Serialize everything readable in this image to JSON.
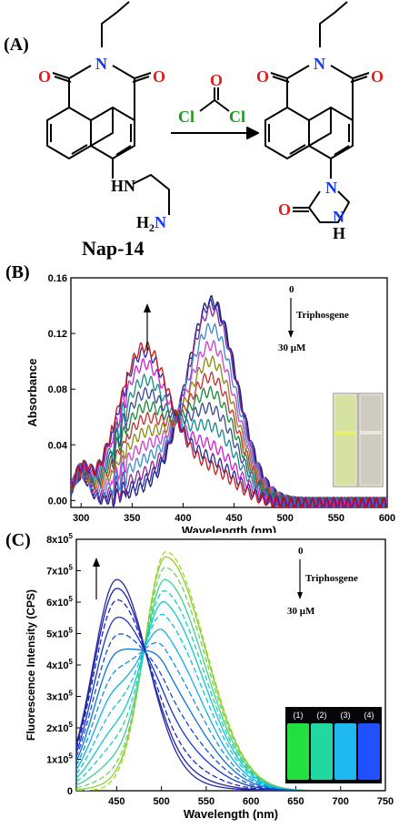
{
  "panels": {
    "a": {
      "label": "(A)",
      "reagent": {
        "o": "O",
        "cl_left": "Cl",
        "cl_right": "Cl"
      },
      "reactant": {
        "n": "N",
        "o_left": "O",
        "o_right": "O",
        "hn": "HN",
        "h2n": "H",
        "h2n_sub": "2",
        "h2n_n": "N",
        "name": "Nap-14"
      },
      "product": {
        "n": "N",
        "o_left": "O",
        "o_right": "O",
        "n_ring": "N",
        "o_ring": "O",
        "n_h": "N",
        "h": "H"
      }
    },
    "b": {
      "label": "(B)"
    },
    "c": {
      "label": "(C)"
    }
  },
  "chart_data": [
    {
      "type": "line",
      "panel": "(B)",
      "xlabel": "Wavelength (nm)",
      "ylabel": "Absorbance",
      "xlim": [
        290,
        600
      ],
      "ylim": [
        -0.005,
        0.16
      ],
      "x_ticks": [
        300,
        350,
        400,
        450,
        500,
        550,
        600
      ],
      "y_ticks": [
        0.0,
        0.04,
        0.08,
        0.12,
        0.16
      ],
      "y_tick_labels": [
        "0.00",
        "0.04",
        "0.08",
        "0.12",
        "0.16"
      ],
      "annotations": {
        "start": "0",
        "reagent": "Triphosgene",
        "end": "30 μM"
      },
      "isosbestic_point": {
        "x": 390,
        "y": 0.062
      },
      "series_model": "sum of two gaussian bands (362 nm, 428 nm) plus background",
      "series": [
        {
          "band1": 0.008,
          "band2": 0.145,
          "color": "#1a1a5e"
        },
        {
          "band1": 0.012,
          "band2": 0.143,
          "color": "#2b2bb0"
        },
        {
          "band1": 0.018,
          "band2": 0.138,
          "color": "#8a2a8a"
        },
        {
          "band1": 0.028,
          "band2": 0.125,
          "color": "#3a8ad0"
        },
        {
          "band1": 0.038,
          "band2": 0.112,
          "color": "#d040d0"
        },
        {
          "band1": 0.048,
          "band2": 0.1,
          "color": "#8a8a1a"
        },
        {
          "band1": 0.058,
          "band2": 0.088,
          "color": "#c03030"
        },
        {
          "band1": 0.067,
          "band2": 0.077,
          "color": "#1a8a3a"
        },
        {
          "band1": 0.077,
          "band2": 0.065,
          "color": "#3a4a8a"
        },
        {
          "band1": 0.087,
          "band2": 0.052,
          "color": "#1a8a8a"
        },
        {
          "band1": 0.099,
          "band2": 0.038,
          "color": "#d020d0"
        },
        {
          "band1": 0.108,
          "band2": 0.028,
          "color": "#2a2a9a"
        },
        {
          "band1": 0.112,
          "band2": 0.022,
          "color": "#c01a1a"
        }
      ],
      "inset": {
        "type": "photo",
        "cuvettes": 2
      }
    },
    {
      "type": "line",
      "panel": "(C)",
      "xlabel": "Wavelength (nm)",
      "ylabel": "Fluorescence Intensity (CPS)",
      "xlim": [
        405,
        750
      ],
      "ylim": [
        0,
        800000
      ],
      "x_ticks": [
        450,
        500,
        550,
        600,
        650,
        700,
        750
      ],
      "y_ticks": [
        0,
        100000,
        200000,
        300000,
        400000,
        500000,
        600000,
        700000,
        800000
      ],
      "y_tick_mantissa": [
        "0",
        "1x10",
        "2x10",
        "3x10",
        "4x10",
        "5x10",
        "6x10",
        "7x10",
        "8x10"
      ],
      "y_tick_exponent": "5",
      "annotations": {
        "start": "0",
        "reagent": "Triphosgene",
        "end": "30 μM"
      },
      "isosbestic_point": {
        "x": 482,
        "y": 460000
      },
      "series_model": "sum of two emission bands (450 nm, 505 nm)",
      "series": [
        {
          "band1": 0,
          "band2": 760000,
          "color": "#a8d820",
          "dashed": true
        },
        {
          "band1": 15000,
          "band2": 740000,
          "color": "#8ed030",
          "dashed": false
        },
        {
          "band1": 40000,
          "band2": 700000,
          "color": "#70d060",
          "dashed": true
        },
        {
          "band1": 80000,
          "band2": 650000,
          "color": "#40d090",
          "dashed": false
        },
        {
          "band1": 130000,
          "band2": 600000,
          "color": "#20d0b0",
          "dashed": true
        },
        {
          "band1": 180000,
          "band2": 550000,
          "color": "#10c8c8",
          "dashed": false
        },
        {
          "band1": 240000,
          "band2": 490000,
          "color": "#10c0e0",
          "dashed": true
        },
        {
          "band1": 300000,
          "band2": 420000,
          "color": "#10b0e8",
          "dashed": false
        },
        {
          "band1": 360000,
          "band2": 350000,
          "color": "#1090e0",
          "dashed": true
        },
        {
          "band1": 420000,
          "band2": 280000,
          "color": "#1070d8",
          "dashed": false
        },
        {
          "band1": 480000,
          "band2": 210000,
          "color": "#1050d0",
          "dashed": true
        },
        {
          "band1": 540000,
          "band2": 150000,
          "color": "#1538c8",
          "dashed": false
        },
        {
          "band1": 600000,
          "band2": 90000,
          "color": "#1a28b8",
          "dashed": true
        },
        {
          "band1": 640000,
          "band2": 50000,
          "color": "#2020b0",
          "dashed": false
        },
        {
          "band1": 670000,
          "band2": 25000,
          "color": "#2828a8",
          "dashed": false
        }
      ],
      "inset": {
        "type": "photo",
        "labels": [
          "(1)",
          "(2)",
          "(3)",
          "(4)"
        ],
        "colors": [
          "#22e040",
          "#20d8a0",
          "#20b8f0",
          "#2050ff"
        ]
      }
    }
  ]
}
